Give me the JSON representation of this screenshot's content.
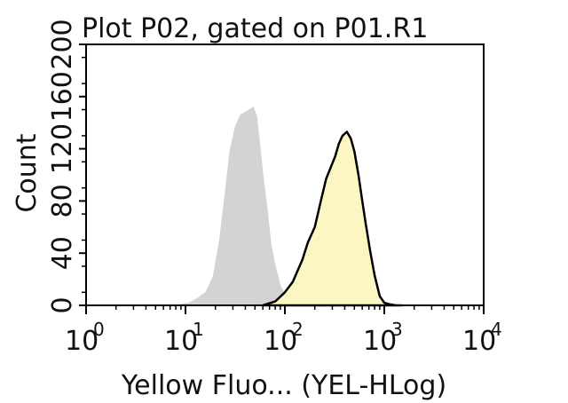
{
  "chart_data": {
    "type": "area",
    "title": "Plot P02, gated on P01.R1",
    "xlabel": "Yellow Fluo... (YEL-HLog)",
    "ylabel": "Count",
    "xscale": "log",
    "xlim": [
      1,
      10000
    ],
    "ylim": [
      0,
      200
    ],
    "x_tick_labels": [
      {
        "base": "10",
        "exp": "0"
      },
      {
        "base": "10",
        "exp": "1"
      },
      {
        "base": "10",
        "exp": "2"
      },
      {
        "base": "10",
        "exp": "3"
      },
      {
        "base": "10",
        "exp": "4"
      }
    ],
    "y_ticks": [
      "0",
      "40",
      "80",
      "120",
      "160",
      "200"
    ],
    "grid": false,
    "series": [
      {
        "style": "filled",
        "fill_color": "#d3d3d3",
        "stroke_color": "#d3d3d3",
        "x": [
          8,
          11,
          13,
          16,
          19,
          22,
          25,
          28,
          32,
          36,
          40,
          44,
          48,
          52,
          55,
          60,
          66,
          72,
          80,
          90,
          100,
          110,
          125,
          145
        ],
        "y": [
          0,
          2,
          5,
          10,
          22,
          50,
          85,
          118,
          138,
          146,
          148,
          150,
          152,
          145,
          128,
          100,
          75,
          48,
          30,
          15,
          8,
          3,
          1,
          0
        ]
      },
      {
        "style": "filled_outlined",
        "fill_color": "#fcf7c2",
        "stroke_color": "#000000",
        "x": [
          60,
          80,
          100,
          120,
          150,
          170,
          200,
          230,
          260,
          290,
          320,
          350,
          380,
          420,
          460,
          500,
          550,
          600,
          650,
          720,
          800,
          900,
          1000,
          1100,
          1300,
          1500
        ],
        "y": [
          0,
          3,
          10,
          18,
          35,
          48,
          60,
          80,
          97,
          106,
          114,
          124,
          130,
          133,
          128,
          118,
          100,
          80,
          63,
          42,
          23,
          7,
          2,
          1,
          0,
          0
        ]
      }
    ]
  }
}
